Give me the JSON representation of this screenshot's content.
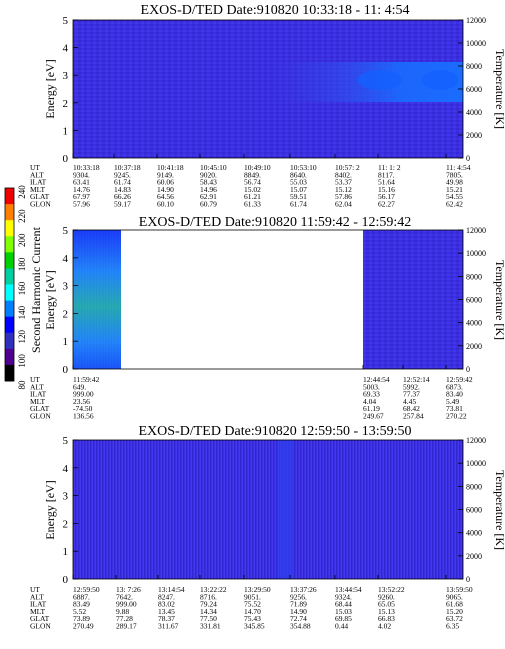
{
  "figure": {
    "colorbar": {
      "label": "Second Harmonic Current",
      "ticks": [
        "240",
        "220",
        "200",
        "180",
        "160",
        "140",
        "120",
        "100",
        "80"
      ],
      "colors": [
        "#f00000",
        "#ff8000",
        "#ffff00",
        "#80ff00",
        "#00d000",
        "#00d0a0",
        "#00ffff",
        "#0080ff",
        "#0000ff",
        "#3030c0",
        "#500090",
        "#000000"
      ]
    },
    "panels": [
      {
        "title": "EXOS-D/TED   Date:910820  10:33:18 - 11: 4:54",
        "energy_ticks": [
          "5",
          "4",
          "3",
          "2",
          "1",
          "0"
        ],
        "temp_ticks": [
          "12000",
          "10000",
          "8000",
          "6000",
          "4000",
          "2000",
          "0"
        ],
        "ylabel_left": "Energy [eV]",
        "ylabel_right": "Temperature [K]",
        "row_labels": [
          "UT",
          "ALT",
          "ILAT",
          "MLT",
          "GLAT",
          "GLON"
        ],
        "columns": [
          [
            "10:33:18",
            "9304.",
            "63.41",
            "14.76",
            "67.97",
            "57.96"
          ],
          [
            "10:37:18",
            "9245.",
            "61.74",
            "14.83",
            "66.26",
            "59.17"
          ],
          [
            "10:41:18",
            "9149.",
            "60.06",
            "14.90",
            "64.56",
            "60.10"
          ],
          [
            "10:45:10",
            "9020.",
            "58.43",
            "14.96",
            "62.91",
            "60.79"
          ],
          [
            "10:49:10",
            "8849.",
            "56.74",
            "15.02",
            "61.21",
            "61.33"
          ],
          [
            "10:53:10",
            "8640.",
            "55.03",
            "15.07",
            "59.51",
            "61.74"
          ],
          [
            "10:57: 2",
            "8402.",
            "53.37",
            "15.12",
            "57.86",
            "62.04"
          ],
          [
            "11: 1: 2",
            "8117.",
            "51.64",
            "15.16",
            "56.17",
            "62.27"
          ],
          [
            "11: 4:54",
            "7805.",
            "49.98",
            "15.21",
            "54.55",
            "62.42"
          ]
        ]
      },
      {
        "title": "EXOS-D/TED   Date:910820  11:59:42 - 12:59:42",
        "energy_ticks": [
          "5",
          "4",
          "3",
          "2",
          "1",
          "0"
        ],
        "temp_ticks": [
          "12000",
          "10000",
          "8000",
          "6000",
          "4000",
          "2000",
          "0"
        ],
        "ylabel_left": "Energy [eV]",
        "ylabel_right": "Temperature [K]",
        "row_labels": [
          "UT",
          "ALT",
          "ILAT",
          "MLT",
          "GLAT",
          "GLON"
        ],
        "columns": [
          [
            "11:59:42",
            "649.",
            "999.00",
            "23.56",
            "-74.50",
            "136.56"
          ],
          [
            "12:44:54",
            "5003.",
            "69.33",
            "4.04",
            "61.19",
            "249.67"
          ],
          [
            "12:52:14",
            "5992.",
            "77.37",
            "4.45",
            "68.42",
            "257.84"
          ],
          [
            "12:59:42",
            "6873.",
            "83.40",
            "5.49",
            "73.81",
            "270.22"
          ]
        ]
      },
      {
        "title": "EXOS-D/TED   Date:910820  12:59:50 - 13:59:50",
        "energy_ticks": [
          "5",
          "4",
          "3",
          "2",
          "1",
          "0"
        ],
        "temp_ticks": [
          "12000",
          "10000",
          "8000",
          "6000",
          "4000",
          "2000",
          "0"
        ],
        "ylabel_left": "Energy [eV]",
        "ylabel_right": "Temperature [K]",
        "row_labels": [
          "UT",
          "ALT",
          "ILAT",
          "MLT",
          "GLAT",
          "GLON"
        ],
        "columns": [
          [
            "12:59:50",
            "6887.",
            "83.49",
            "5.52",
            "73.89",
            "270.49"
          ],
          [
            "13: 7:26",
            "7642.",
            "999.00",
            "9.88",
            "77.28",
            "289.17"
          ],
          [
            "13:14:54",
            "8247.",
            "83.02",
            "13.45",
            "78.37",
            "311.67"
          ],
          [
            "13:22:22",
            "8716.",
            "79.24",
            "14.34",
            "77.50",
            "331.81"
          ],
          [
            "13:29:50",
            "9051.",
            "75.52",
            "14.70",
            "75.43",
            "345.85"
          ],
          [
            "13:37:26",
            "9256.",
            "71.89",
            "14.90",
            "72.74",
            "354.88"
          ],
          [
            "13:44:54",
            "9324.",
            "68.44",
            "15.03",
            "69.85",
            "0.44"
          ],
          [
            "13:52:22",
            "9260.",
            "65.05",
            "15.13",
            "66.83",
            "4.02"
          ],
          [
            "13:59:50",
            "9065.",
            "61.68",
            "15.20",
            "63.72",
            "6.35"
          ]
        ]
      }
    ]
  },
  "chart_data": [
    {
      "type": "heatmap",
      "title": "EXOS-D/TED   Date:910820  10:33:18 - 11: 4:54",
      "xlabel": "UT",
      "ylabel": "Energy [eV]",
      "ylabel_right": "Temperature [K]",
      "ylim": [
        0,
        5
      ],
      "ylim_right": [
        0,
        12000
      ],
      "xlim": [
        "10:33:18",
        "11: 4:54"
      ],
      "colorscale": "Second Harmonic Current",
      "clim": [
        80,
        240
      ],
      "description_values": {
        "background_level": 110,
        "enhanced_band_energy_ev": [
          2.3,
          3.0
        ],
        "enhanced_band_start_ut": "10:53:10",
        "enhanced_band_level": 125
      }
    },
    {
      "type": "heatmap",
      "title": "EXOS-D/TED   Date:910820  11:59:42 - 12:59:42",
      "xlabel": "UT",
      "ylabel": "Energy [eV]",
      "ylabel_right": "Temperature [K]",
      "ylim": [
        0,
        5
      ],
      "ylim_right": [
        0,
        12000
      ],
      "xlim": [
        "11:59:42",
        "12:59:42"
      ],
      "colorscale": "Second Harmonic Current",
      "clim": [
        80,
        240
      ],
      "data_gap": [
        "12:04:00",
        "12:44:54"
      ],
      "description_values": {
        "early_segment_level": 160,
        "late_segment_level": 110
      }
    },
    {
      "type": "heatmap",
      "title": "EXOS-D/TED   Date:910820  12:59:50 - 13:59:50",
      "xlabel": "UT",
      "ylabel": "Energy [eV]",
      "ylabel_right": "Temperature [K]",
      "ylim": [
        0,
        5
      ],
      "ylim_right": [
        0,
        12000
      ],
      "xlim": [
        "12:59:50",
        "13:59:50"
      ],
      "colorscale": "Second Harmonic Current",
      "clim": [
        80,
        240
      ],
      "description_values": {
        "background_level": 110,
        "vertical_stripe_ut": "13:29:50",
        "stripe_level": 125
      }
    }
  ]
}
